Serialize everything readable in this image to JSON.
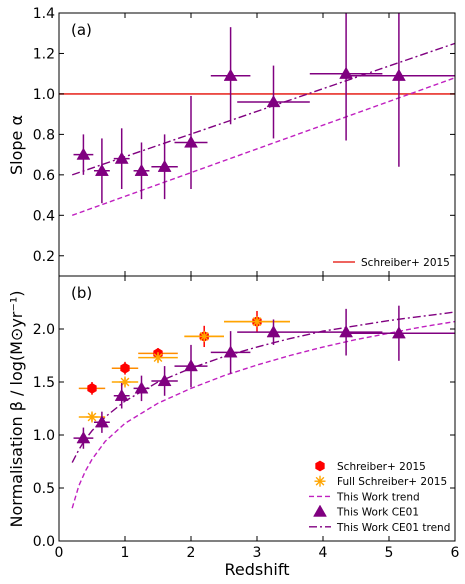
{
  "chart_data": [
    {
      "panel_label": "(a)",
      "type": "scatter",
      "ylabel": "Slope α",
      "xlim": [
        0,
        6
      ],
      "ylim": [
        0.1,
        1.4
      ],
      "yticks": [
        "0.2",
        "0.4",
        "0.6",
        "0.8",
        "1.0",
        "1.2",
        "1.4"
      ],
      "legend_position": "lower-right",
      "reference_line": {
        "name": "Schreiber+ 2015",
        "y": 1.0,
        "color": "#e8302a"
      },
      "series": [
        {
          "name": "This Work CE01",
          "color": "#800080",
          "marker": "triangle",
          "points": [
            {
              "x": 0.37,
              "y": 0.7,
              "xerr": 0.15,
              "yerr_lo": 0.1,
              "yerr_hi": 0.1
            },
            {
              "x": 0.65,
              "y": 0.62,
              "xerr": 0.12,
              "yerr_lo": 0.16,
              "yerr_hi": 0.16
            },
            {
              "x": 0.95,
              "y": 0.68,
              "xerr": 0.12,
              "yerr_lo": 0.15,
              "yerr_hi": 0.15
            },
            {
              "x": 1.25,
              "y": 0.62,
              "xerr": 0.12,
              "yerr_lo": 0.14,
              "yerr_hi": 0.14
            },
            {
              "x": 1.6,
              "y": 0.64,
              "xerr": 0.2,
              "yerr_lo": 0.16,
              "yerr_hi": 0.16
            },
            {
              "x": 2.0,
              "y": 0.76,
              "xerr": 0.25,
              "yerr_lo": 0.23,
              "yerr_hi": 0.23
            },
            {
              "x": 2.6,
              "y": 1.09,
              "xerr": 0.3,
              "yerr_lo": 0.24,
              "yerr_hi": 0.24
            },
            {
              "x": 3.25,
              "y": 0.96,
              "xerr": 0.55,
              "yerr_lo": 0.18,
              "yerr_hi": 0.18
            },
            {
              "x": 4.35,
              "y": 1.1,
              "xerr": 0.55,
              "yerr_lo": 0.33,
              "yerr_hi": 0.33
            },
            {
              "x": 5.15,
              "y": 1.09,
              "xerr": 0.85,
              "yerr_lo": 0.45,
              "yerr_hi": 0.45
            }
          ]
        }
      ],
      "trends": [
        {
          "name": "This Work CE01 trend",
          "color": "#800080",
          "style": "dashdot",
          "x": [
            0.2,
            6.0
          ],
          "y": [
            0.6,
            1.25
          ]
        },
        {
          "name": "This Work trend",
          "color": "#c020c0",
          "style": "dashed",
          "x": [
            0.2,
            6.0
          ],
          "y": [
            0.4,
            1.08
          ]
        }
      ],
      "legend": [
        "Schreiber+ 2015"
      ]
    },
    {
      "panel_label": "(b)",
      "type": "scatter",
      "xlabel": "Redshift",
      "ylabel": "Normalisation β / log(M⊙yr⁻¹)",
      "xlim": [
        0,
        6
      ],
      "ylim": [
        0.0,
        2.5
      ],
      "xticks": [
        "0",
        "1",
        "2",
        "3",
        "4",
        "5",
        "6"
      ],
      "yticks": [
        "0.0",
        "0.5",
        "1.0",
        "1.5",
        "2.0"
      ],
      "legend_position": "lower-right",
      "series": [
        {
          "name": "Schreiber+ 2015",
          "color": "#ff0000",
          "marker": "hexagon",
          "points": [
            {
              "x": 0.5,
              "y": 1.44,
              "xerr": 0.2,
              "yerr_lo": 0.06,
              "yerr_hi": 0.06
            },
            {
              "x": 1.0,
              "y": 1.63,
              "xerr": 0.2,
              "yerr_lo": 0.06,
              "yerr_hi": 0.06
            },
            {
              "x": 1.5,
              "y": 1.77,
              "xerr": 0.3,
              "yerr_lo": 0.05,
              "yerr_hi": 0.05
            },
            {
              "x": 2.2,
              "y": 1.93,
              "xerr": 0.3,
              "yerr_lo": 0.1,
              "yerr_hi": 0.1
            },
            {
              "x": 3.0,
              "y": 2.07,
              "xerr": 0.5,
              "yerr_lo": 0.1,
              "yerr_hi": 0.1
            }
          ],
          "xerr_color": "#ff8c00"
        },
        {
          "name": "Full Schreiber+ 2015",
          "color": "#ffa500",
          "marker": "star",
          "points": [
            {
              "x": 0.5,
              "y": 1.17,
              "xerr": 0.2,
              "yerr_lo": 0.04,
              "yerr_hi": 0.04
            },
            {
              "x": 1.0,
              "y": 1.5,
              "xerr": 0.2,
              "yerr_lo": 0.04,
              "yerr_hi": 0.04
            },
            {
              "x": 1.5,
              "y": 1.73,
              "xerr": 0.3,
              "yerr_lo": 0.04,
              "yerr_hi": 0.04
            },
            {
              "x": 2.2,
              "y": 1.93,
              "xerr": 0.3,
              "yerr_lo": 0.04,
              "yerr_hi": 0.04
            },
            {
              "x": 3.0,
              "y": 2.07,
              "xerr": 0.5,
              "yerr_lo": 0.04,
              "yerr_hi": 0.04
            }
          ]
        },
        {
          "name": "This Work CE01",
          "color": "#800080",
          "marker": "triangle",
          "points": [
            {
              "x": 0.37,
              "y": 0.97,
              "xerr": 0.15,
              "yerr_lo": 0.1,
              "yerr_hi": 0.1
            },
            {
              "x": 0.65,
              "y": 1.12,
              "xerr": 0.12,
              "yerr_lo": 0.1,
              "yerr_hi": 0.1
            },
            {
              "x": 0.95,
              "y": 1.37,
              "xerr": 0.12,
              "yerr_lo": 0.12,
              "yerr_hi": 0.12
            },
            {
              "x": 1.25,
              "y": 1.44,
              "xerr": 0.12,
              "yerr_lo": 0.12,
              "yerr_hi": 0.12
            },
            {
              "x": 1.6,
              "y": 1.51,
              "xerr": 0.2,
              "yerr_lo": 0.14,
              "yerr_hi": 0.14
            },
            {
              "x": 2.0,
              "y": 1.65,
              "xerr": 0.25,
              "yerr_lo": 0.2,
              "yerr_hi": 0.2
            },
            {
              "x": 2.6,
              "y": 1.78,
              "xerr": 0.3,
              "yerr_lo": 0.2,
              "yerr_hi": 0.2
            },
            {
              "x": 3.25,
              "y": 1.97,
              "xerr": 0.55,
              "yerr_lo": 0.12,
              "yerr_hi": 0.12
            },
            {
              "x": 4.35,
              "y": 1.97,
              "xerr": 0.55,
              "yerr_lo": 0.22,
              "yerr_hi": 0.22
            },
            {
              "x": 5.15,
              "y": 1.96,
              "xerr": 0.85,
              "yerr_lo": 0.26,
              "yerr_hi": 0.26
            }
          ]
        }
      ],
      "trends": [
        {
          "name": "This Work trend",
          "color": "#c020c0",
          "style": "dashed",
          "x": [
            0.2,
            0.3,
            0.4,
            0.5,
            0.7,
            1.0,
            1.5,
            2.0,
            2.5,
            3.0,
            3.5,
            4.0,
            4.5,
            5.0,
            5.5,
            6.0
          ],
          "y": [
            0.31,
            0.52,
            0.66,
            0.77,
            0.94,
            1.11,
            1.3,
            1.44,
            1.56,
            1.66,
            1.75,
            1.83,
            1.9,
            1.96,
            2.02,
            2.07
          ]
        },
        {
          "name": "This Work CE01 trend",
          "color": "#800080",
          "style": "dashdot",
          "x": [
            0.2,
            0.3,
            0.4,
            0.5,
            0.7,
            1.0,
            1.5,
            2.0,
            2.5,
            3.0,
            3.5,
            4.0,
            4.5,
            5.0,
            5.5,
            6.0
          ],
          "y": [
            0.74,
            0.86,
            0.96,
            1.04,
            1.17,
            1.32,
            1.5,
            1.63,
            1.74,
            1.83,
            1.91,
            1.98,
            2.03,
            2.08,
            2.12,
            2.16
          ]
        }
      ],
      "legend": [
        "Schreiber+ 2015",
        "Full Schreiber+ 2015",
        "This Work trend",
        "This Work CE01",
        "This Work CE01 trend"
      ]
    }
  ]
}
